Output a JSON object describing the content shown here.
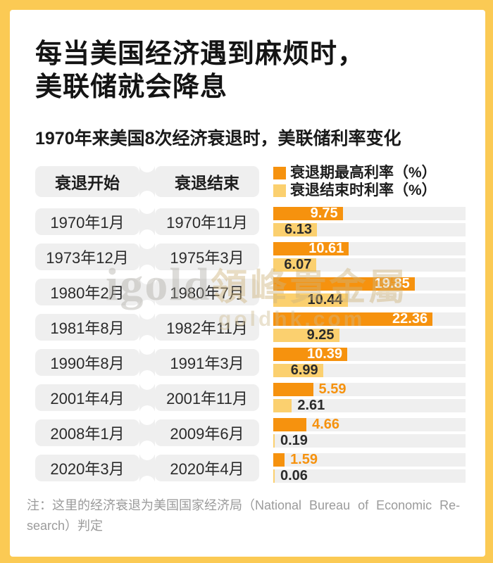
{
  "card": {
    "border_color": "#FBCA54",
    "background": "#FFFFFF"
  },
  "title": {
    "line1": "每当美国经济遇到麻烦时，",
    "line2": "美联储就会降息"
  },
  "subtitle": "1970年来美国8次经济衰退时，美联储利率变化",
  "table": {
    "start_header": "衰退开始",
    "end_header": "衰退结束"
  },
  "legend": {
    "max": {
      "label": "衰退期最高利率（%）",
      "color": "#F6920E"
    },
    "final": {
      "label": "衰退结束时利率（%）",
      "color": "#FBD06F"
    }
  },
  "rows": [
    {
      "start": "1970年1月",
      "end": "1970年11月",
      "max_rate": 9.75,
      "end_rate": 6.13
    },
    {
      "start": "1973年12月",
      "end": "1975年3月",
      "max_rate": 10.61,
      "end_rate": 6.07
    },
    {
      "start": "1980年2月",
      "end": "1980年7月",
      "max_rate": 19.85,
      "end_rate": 10.44
    },
    {
      "start": "1981年8月",
      "end": "1982年11月",
      "max_rate": 22.36,
      "end_rate": 9.25
    },
    {
      "start": "1990年8月",
      "end": "1991年3月",
      "max_rate": 10.39,
      "end_rate": 6.99
    },
    {
      "start": "2001年4月",
      "end": "2001年11月",
      "max_rate": 5.59,
      "end_rate": 2.61
    },
    {
      "start": "2008年1月",
      "end": "2009年6月",
      "max_rate": 4.66,
      "end_rate": 0.19
    },
    {
      "start": "2020年3月",
      "end": "2020年4月",
      "max_rate": 1.59,
      "end_rate": 0.06
    }
  ],
  "note": {
    "line1": "注：这里的经济衰退为美国国家经济局（National Bureau of Economic Re-",
    "line2": "search）判定"
  },
  "watermark": {
    "brand": "igold",
    "brand_cjk": "領峰貴金屬",
    "url": "goldhk.com"
  },
  "chart_data": {
    "type": "bar",
    "orientation": "horizontal",
    "title": "1970年来美国8次经济衰退时，美联储利率变化",
    "categories": [
      "1970年1月–1970年11月",
      "1973年12月–1975年3月",
      "1980年2月–1980年7月",
      "1981年8月–1982年11月",
      "1990年8月–1991年3月",
      "2001年4月–2001年11月",
      "2008年1月–2009年6月",
      "2020年3月–2020年4月"
    ],
    "series": [
      {
        "name": "衰退期最高利率（%）",
        "color": "#F6920E",
        "values": [
          9.75,
          10.61,
          19.85,
          22.36,
          10.39,
          5.59,
          4.66,
          1.59
        ]
      },
      {
        "name": "衰退结束时利率（%）",
        "color": "#FBD06F",
        "values": [
          6.13,
          6.07,
          10.44,
          9.25,
          6.99,
          2.61,
          0.19,
          0.06
        ]
      }
    ],
    "xlim": [
      0,
      27
    ],
    "grid": false,
    "legend_position": "top-right",
    "value_labels": true
  }
}
